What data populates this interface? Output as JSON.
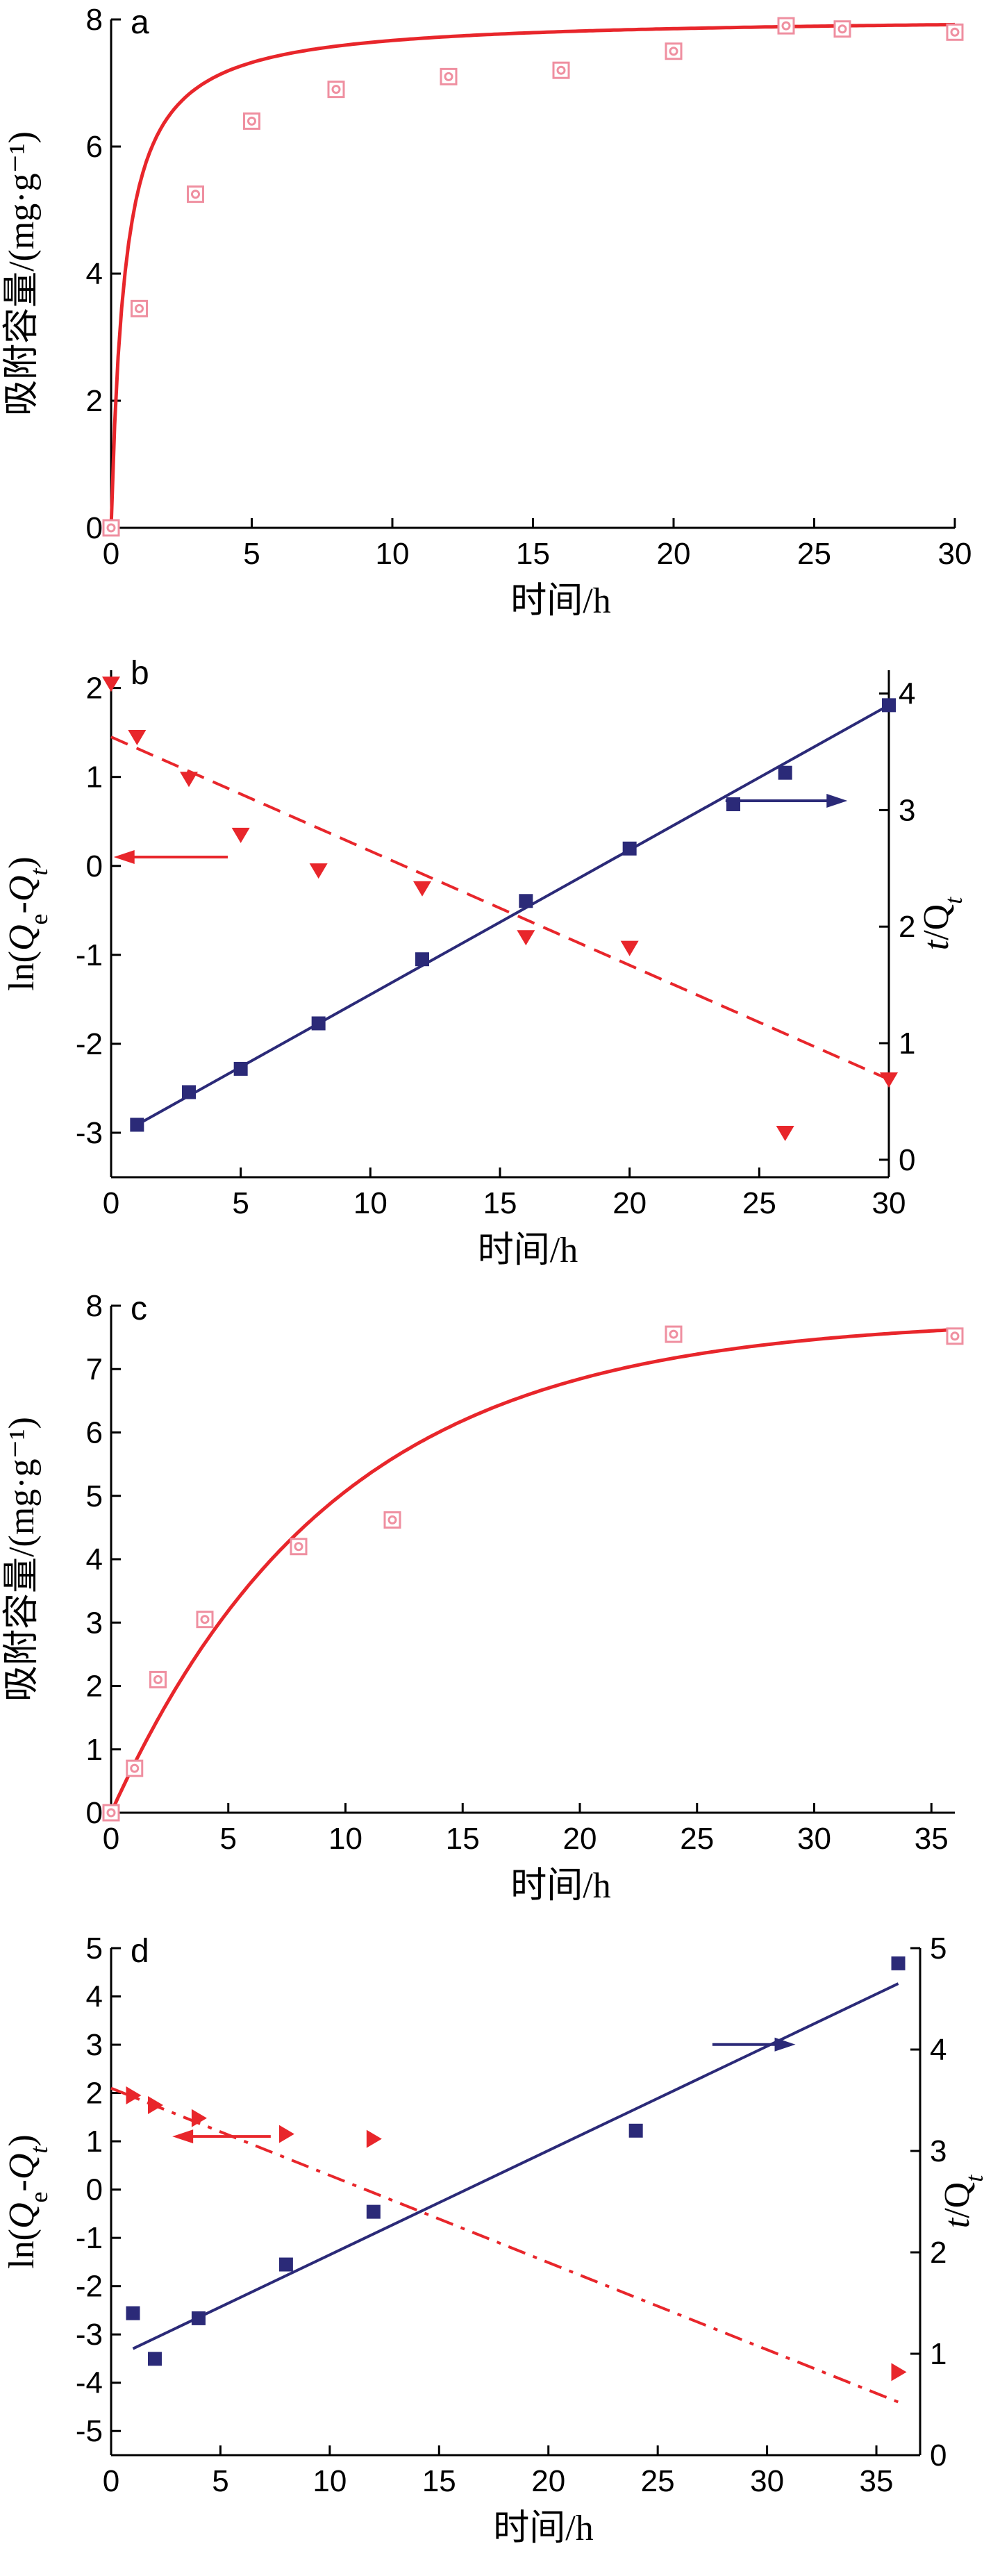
{
  "colors": {
    "red": "#e8262b",
    "pink": "#ef8fa0",
    "navy": "#2b2a78",
    "black": "#000000"
  },
  "chart_data": [
    {
      "panel": "a",
      "type": "scatter",
      "xlabel": "时间/h",
      "ylabel": "吸附容量/(mg·g⁻¹)",
      "xlim": [
        0,
        30
      ],
      "ylim": [
        0,
        8
      ],
      "xticks": [
        "0",
        "5",
        "10",
        "15",
        "20",
        "25",
        "30"
      ],
      "yticks": [
        "0",
        "2",
        "4",
        "6",
        "8"
      ],
      "series": [
        {
          "kind": "points",
          "marker": "square-dot",
          "color": "#ef8fa0",
          "x": [
            0,
            1,
            3,
            5,
            8,
            12,
            16,
            20,
            24,
            26,
            30
          ],
          "y": [
            0,
            3.45,
            5.25,
            6.4,
            6.9,
            7.1,
            7.2,
            7.5,
            7.9,
            7.85,
            7.8
          ]
        },
        {
          "kind": "curve",
          "color": "#e8262b",
          "model": "pseudo-second-order",
          "qe": 8.05,
          "k": 0.25
        }
      ]
    },
    {
      "panel": "b",
      "type": "scatter",
      "xlabel": "时间/h",
      "ylabel_left": "ln(Qe-Qt)",
      "ylabel_right": "t/Qt",
      "xlim": [
        0,
        30
      ],
      "ylim_left": [
        -3.5,
        2.2
      ],
      "ylim_right": [
        -0.15,
        4.2
      ],
      "xticks": [
        "0",
        "5",
        "10",
        "15",
        "20",
        "25",
        "30"
      ],
      "yticks_left": [
        "-3",
        "-2",
        "-1",
        "0",
        "1",
        "2"
      ],
      "yticks_right": [
        "0",
        "1",
        "2",
        "3",
        "4"
      ],
      "series": [
        {
          "kind": "points",
          "marker": "triangle-down",
          "color": "#e8262b",
          "axis": "left",
          "x": [
            0,
            1,
            3,
            5,
            8,
            12,
            16,
            20,
            26,
            30
          ],
          "y": [
            2.05,
            1.45,
            0.98,
            0.35,
            -0.05,
            -0.25,
            -0.8,
            -0.92,
            -3.0,
            -2.4
          ]
        },
        {
          "kind": "line",
          "style": "dashed",
          "color": "#e8262b",
          "axis": "left",
          "x": [
            0,
            30
          ],
          "y": [
            1.45,
            -2.4
          ]
        },
        {
          "kind": "points",
          "marker": "square",
          "color": "#2b2a78",
          "axis": "right",
          "x": [
            1,
            3,
            5,
            8,
            12,
            16,
            20,
            24,
            26,
            30
          ],
          "y": [
            0.3,
            0.58,
            0.78,
            1.17,
            1.72,
            2.22,
            2.67,
            3.05,
            3.32,
            3.9
          ]
        },
        {
          "kind": "line",
          "style": "solid",
          "color": "#2b2a78",
          "axis": "right",
          "x": [
            1,
            30
          ],
          "y": [
            0.3,
            3.9
          ]
        }
      ],
      "arrows": [
        {
          "to": "left",
          "x_from": 4.5,
          "x_to": 0.1,
          "y_left": 0.1,
          "color": "#e8262b"
        },
        {
          "to": "right",
          "x_from": 23.7,
          "x_to": 28.4,
          "y_right": 3.08,
          "color": "#2b2a78"
        }
      ]
    },
    {
      "panel": "c",
      "type": "scatter",
      "xlabel": "时间/h",
      "ylabel": "吸附容量/(mg·g⁻¹)",
      "xlim": [
        0,
        36
      ],
      "ylim": [
        0,
        8
      ],
      "xticks": [
        "0",
        "5",
        "10",
        "15",
        "20",
        "25",
        "30",
        "35"
      ],
      "yticks": [
        "0",
        "1",
        "2",
        "3",
        "4",
        "5",
        "6",
        "7",
        "8"
      ],
      "series": [
        {
          "kind": "points",
          "marker": "square-dot",
          "color": "#ef8fa0",
          "x": [
            0,
            1,
            2,
            4,
            8,
            12,
            24,
            36
          ],
          "y": [
            0,
            0.7,
            2.1,
            3.05,
            4.2,
            4.62,
            7.55,
            7.52
          ]
        },
        {
          "kind": "curve",
          "color": "#e8262b",
          "model": "pseudo-first-order",
          "qe": 7.8,
          "k": 0.105
        }
      ]
    },
    {
      "panel": "d",
      "type": "scatter",
      "xlabel": "时间/h",
      "ylabel_left": "ln(Qe-Qt)",
      "ylabel_right": "t/Qt",
      "xlim": [
        0,
        37
      ],
      "ylim_left": [
        -5.5,
        5
      ],
      "ylim_right": [
        0,
        5
      ],
      "xticks": [
        "0",
        "5",
        "10",
        "15",
        "20",
        "25",
        "30",
        "35"
      ],
      "yticks_left": [
        "-5",
        "-4",
        "-3",
        "-2",
        "-1",
        "0",
        "1",
        "2",
        "3",
        "4",
        "5"
      ],
      "yticks_right": [
        "0",
        "1",
        "2",
        "3",
        "4",
        "5"
      ],
      "series": [
        {
          "kind": "points",
          "marker": "triangle-right",
          "color": "#e8262b",
          "axis": "left",
          "x": [
            1,
            2,
            4,
            8,
            12,
            36
          ],
          "y": [
            1.95,
            1.75,
            1.48,
            1.15,
            1.05,
            -3.78
          ]
        },
        {
          "kind": "line",
          "style": "dashdot",
          "color": "#e8262b",
          "axis": "left",
          "x": [
            0,
            36
          ],
          "y": [
            2.1,
            -4.4
          ]
        },
        {
          "kind": "points",
          "marker": "square",
          "color": "#2b2a78",
          "axis": "right",
          "x": [
            1,
            2,
            4,
            8,
            12,
            24,
            36
          ],
          "y": [
            1.4,
            0.95,
            1.35,
            1.88,
            2.4,
            3.2,
            4.85
          ]
        },
        {
          "kind": "line",
          "style": "solid",
          "color": "#2b2a78",
          "axis": "right",
          "x": [
            1,
            36
          ],
          "y": [
            1.05,
            4.65
          ]
        }
      ],
      "arrows": [
        {
          "to": "left",
          "x_from": 7.3,
          "x_to": 2.8,
          "y_left": 1.1,
          "color": "#e8262b"
        },
        {
          "to": "right",
          "x_from": 27.5,
          "x_to": 31.3,
          "y_right": 4.05,
          "color": "#2b2a78"
        }
      ]
    }
  ]
}
